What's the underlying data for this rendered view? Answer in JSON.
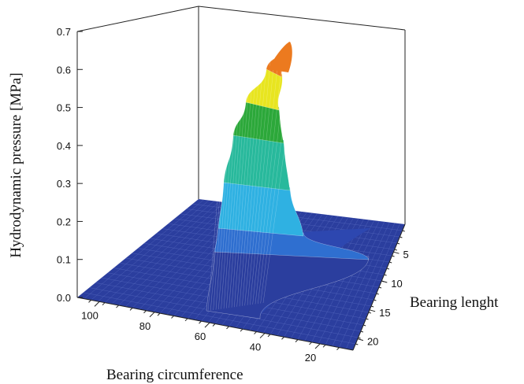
{
  "chart_data": {
    "type": "surface",
    "zlabel": "Hydrodynamic pressure [MPa]",
    "xlabel": "Bearing circumference",
    "ylabel": "Bearing lenght",
    "z_ticks": [
      "0.0",
      "0.1",
      "0.2",
      "0.3",
      "0.4",
      "0.5",
      "0.6",
      "0.7"
    ],
    "x_ticks": [
      "100",
      "80",
      "60",
      "40",
      "20"
    ],
    "y_ticks": [
      "5",
      "10",
      "15",
      "20"
    ],
    "zlim": [
      0,
      0.7
    ],
    "peak_pressure": 0.66,
    "color_bands": [
      {
        "from": 0.0,
        "to": 0.1,
        "color": "#2b3e9e"
      },
      {
        "from": 0.1,
        "to": 0.2,
        "color": "#2f6fd0"
      },
      {
        "from": 0.2,
        "to": 0.3,
        "color": "#2fb1e2"
      },
      {
        "from": 0.3,
        "to": 0.4,
        "color": "#28b99c"
      },
      {
        "from": 0.4,
        "to": 0.5,
        "color": "#2ca83a"
      },
      {
        "from": 0.5,
        "to": 0.6,
        "color": "#e8e520"
      },
      {
        "from": 0.6,
        "to": 0.7,
        "color": "#ec7a1f"
      }
    ]
  }
}
